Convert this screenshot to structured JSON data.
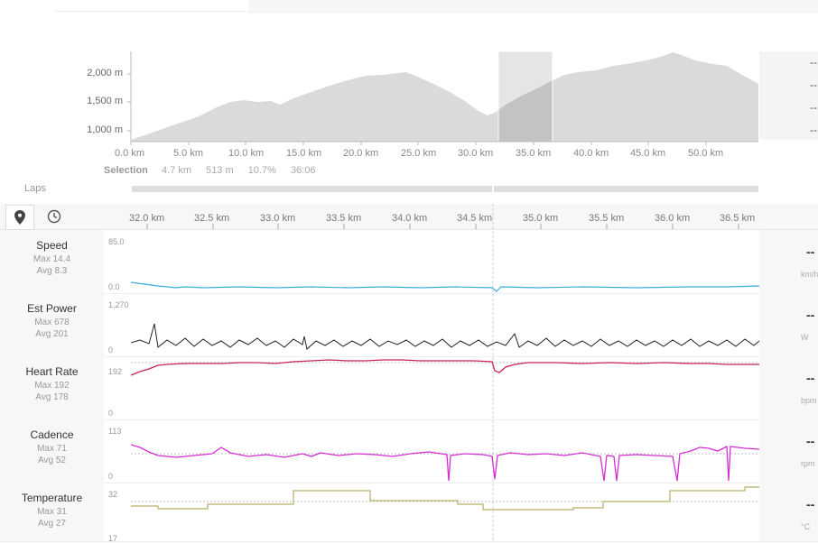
{
  "elevation": {
    "y_ticks": [
      "2,000 m",
      "1,500 m",
      "1,000 m"
    ],
    "x_ticks": [
      "0.0 km",
      "5.0 km",
      "10.0 km",
      "15.0 km",
      "20.0 km",
      "25.0 km",
      "30.0 km",
      "35.0 km",
      "40.0 km",
      "45.0 km",
      "50.0 km"
    ],
    "right_dashes": [
      "--",
      "--",
      "--",
      "--"
    ]
  },
  "selection": {
    "title": "Selection",
    "distance": "4.7 km",
    "elevation_gain": "513 m",
    "grade": "10.7%",
    "time": "36:06"
  },
  "laps": {
    "label": "Laps"
  },
  "toolbar": {
    "map_icon": "map-pin-icon",
    "time_icon": "clock-icon"
  },
  "zoom_axis": {
    "ticks": [
      "32.0 km",
      "32.5 km",
      "33.0 km",
      "33.5 km",
      "34.0 km",
      "34.5 km",
      "35.0 km",
      "35.5 km",
      "36.0 km",
      "36.5 km"
    ]
  },
  "streams": [
    {
      "name": "Speed",
      "max": "Max 14.4",
      "avg": "Avg 8.3",
      "ymax": "85.0",
      "ymin": "0.0",
      "value": "--",
      "unit": "km/h",
      "color": "#3aaed8"
    },
    {
      "name": "Est Power",
      "max": "Max 678",
      "avg": "Avg 201",
      "ymax": "1,270",
      "ymin": "0",
      "value": "--",
      "unit": "W",
      "color": "#222222"
    },
    {
      "name": "Heart Rate",
      "max": "Max 192",
      "avg": "Avg 178",
      "ymax": "192",
      "ymin": "0",
      "value": "--",
      "unit": "bpm",
      "color": "#c8245a"
    },
    {
      "name": "Cadence",
      "max": "Max 71",
      "avg": "Avg 52",
      "ymax": "113",
      "ymin": "0",
      "value": "--",
      "unit": "rpm",
      "color": "#d42ed4"
    },
    {
      "name": "Temperature",
      "max": "Max 31",
      "avg": "Avg 27",
      "ymax": "32",
      "ymin": "17",
      "value": "--",
      "unit": "°C",
      "color": "#b8b06a"
    }
  ]
}
